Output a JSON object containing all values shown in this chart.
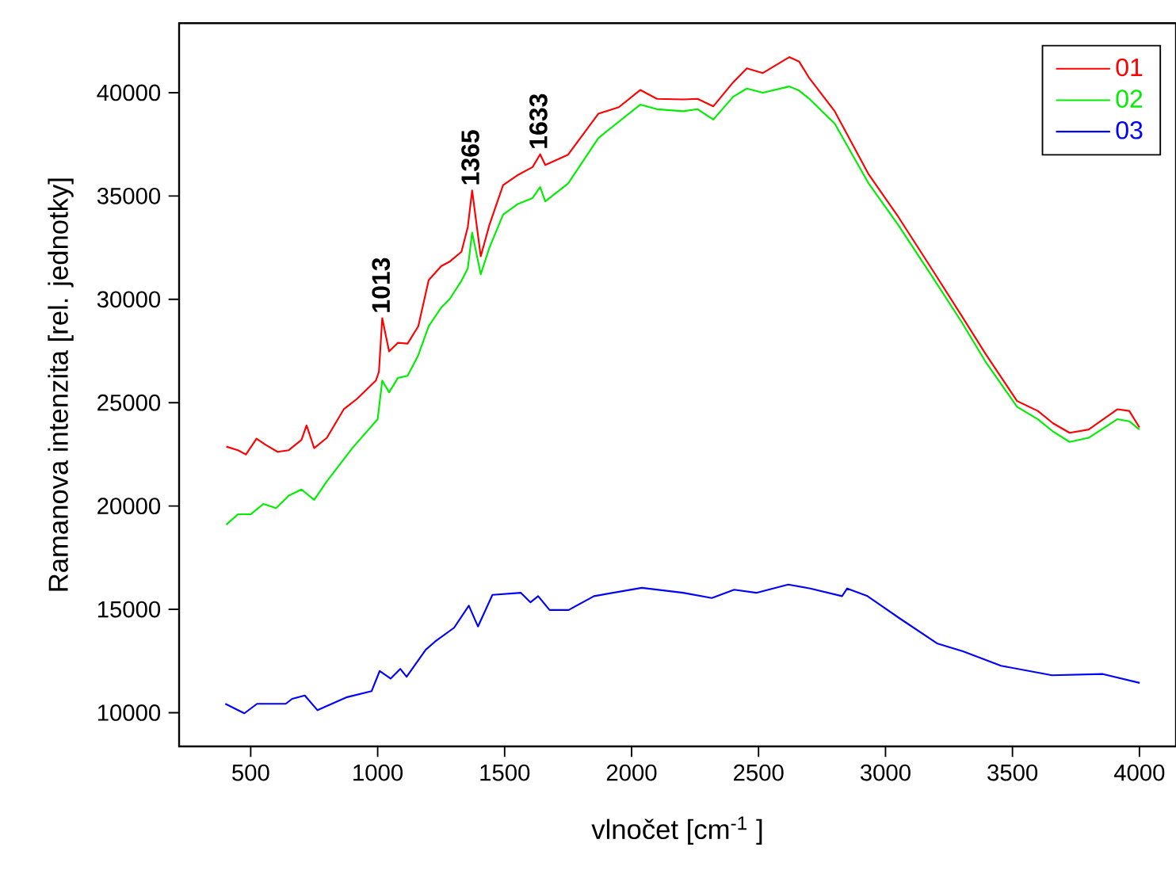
{
  "chart_data": {
    "type": "line",
    "xlabel": "vlnočet [cm$^{-1}$ ]",
    "ylabel": "Ramanova intenzita [rel. jednotky]",
    "xlim": [
      218,
      4144
    ],
    "ylim": [
      8370,
      43360
    ],
    "xticks": [
      500,
      1000,
      1500,
      2000,
      2500,
      3000,
      3500,
      4000
    ],
    "yticks": [
      10000,
      15000,
      20000,
      25000,
      30000,
      35000,
      40000
    ],
    "legend": "top right",
    "marker": "none",
    "line_style": "solid",
    "series": [
      {
        "name": "01",
        "color": "#ff0000",
        "x": [
          404,
          450,
          481,
          523,
          560,
          606,
          650,
          700,
          720,
          750,
          800,
          867,
          920,
          993,
          1005,
          1018,
          1045,
          1080,
          1118,
          1160,
          1201,
          1250,
          1283,
          1330,
          1355,
          1372,
          1406,
          1440,
          1494,
          1550,
          1610,
          1640,
          1660,
          1750,
          1869,
          1950,
          2034,
          2100,
          2203,
          2260,
          2322,
          2400,
          2454,
          2517,
          2621,
          2660,
          2700,
          2800,
          2934,
          3050,
          3184,
          3300,
          3393,
          3518,
          3600,
          3660,
          3725,
          3800,
          3913,
          3960,
          4000
        ],
        "values": [
          22875,
          22700,
          22490,
          23260,
          22950,
          22620,
          22700,
          23200,
          23900,
          22800,
          23300,
          24690,
          25200,
          26070,
          26500,
          29090,
          27480,
          27900,
          27860,
          28700,
          30930,
          31600,
          31820,
          32300,
          33500,
          35270,
          32080,
          33600,
          35530,
          36000,
          36400,
          37020,
          36500,
          37000,
          38980,
          39300,
          40130,
          39700,
          39670,
          39700,
          39340,
          40500,
          41180,
          40950,
          41720,
          41500,
          40700,
          39100,
          36040,
          34000,
          31440,
          29200,
          27380,
          25080,
          24600,
          24000,
          23540,
          23700,
          24680,
          24600,
          23800
        ]
      },
      {
        "name": "02",
        "color": "#00ee00",
        "x": [
          404,
          450,
          500,
          550,
          600,
          650,
          700,
          750,
          800,
          900,
          1000,
          1018,
          1045,
          1080,
          1118,
          1160,
          1201,
          1250,
          1283,
          1330,
          1355,
          1372,
          1406,
          1440,
          1494,
          1550,
          1610,
          1640,
          1660,
          1750,
          1869,
          1950,
          2034,
          2100,
          2203,
          2260,
          2322,
          2400,
          2454,
          2517,
          2621,
          2660,
          2700,
          2800,
          2934,
          3050,
          3184,
          3300,
          3393,
          3518,
          3600,
          3660,
          3725,
          3800,
          3913,
          3960,
          4000
        ],
        "values": [
          19100,
          19600,
          19600,
          20100,
          19900,
          20500,
          20800,
          20300,
          21200,
          22800,
          24200,
          26070,
          25500,
          26200,
          26300,
          27300,
          28700,
          29600,
          30000,
          30900,
          31500,
          33230,
          31210,
          32500,
          34100,
          34600,
          34900,
          35430,
          34740,
          35600,
          37800,
          38600,
          39420,
          39200,
          39100,
          39200,
          38700,
          39800,
          40200,
          40000,
          40300,
          40100,
          39700,
          38500,
          35600,
          33600,
          31100,
          28900,
          27000,
          24800,
          24200,
          23600,
          23100,
          23300,
          24200,
          24100,
          23700
        ]
      },
      {
        "name": "03",
        "color": "#0000ff",
        "x": [
          400,
          475,
          525,
          638,
          663,
          713,
          763,
          876,
          976,
          1008,
          1051,
          1089,
          1114,
          1189,
          1226,
          1301,
          1359,
          1395,
          1452,
          1564,
          1602,
          1632,
          1677,
          1752,
          1852,
          2040,
          2203,
          2316,
          2404,
          2491,
          2617,
          2704,
          2829,
          2849,
          2929,
          3055,
          3205,
          3305,
          3455,
          3656,
          3856,
          4001
        ],
        "values": [
          10430,
          9970,
          10430,
          10430,
          10670,
          10830,
          10120,
          10740,
          11040,
          12020,
          11650,
          12120,
          11740,
          13040,
          13440,
          14110,
          15180,
          14170,
          15700,
          15800,
          15340,
          15640,
          14970,
          14970,
          15640,
          16040,
          15800,
          15550,
          15950,
          15800,
          16200,
          16010,
          15640,
          16010,
          15640,
          14570,
          13340,
          12970,
          12270,
          11810,
          11870,
          11440
        ]
      }
    ],
    "annotations": [
      {
        "text": "1013",
        "x": 1013,
        "y": 29090
      },
      {
        "text": "1365",
        "x": 1365,
        "y": 35270
      },
      {
        "text": "1633",
        "x": 1633,
        "y": 37020
      }
    ]
  }
}
